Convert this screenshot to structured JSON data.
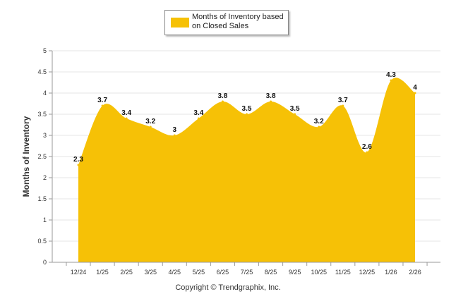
{
  "chart_data": {
    "type": "area",
    "x": [
      "12/24",
      "1/25",
      "2/25",
      "3/25",
      "4/25",
      "5/25",
      "6/25",
      "7/25",
      "8/25",
      "9/25",
      "10/25",
      "11/25",
      "12/25",
      "1/26",
      "2/26"
    ],
    "series": [
      {
        "name": "Months of Inventory based on Closed Sales",
        "values": [
          2.3,
          3.7,
          3.4,
          3.2,
          3.0,
          3.4,
          3.8,
          3.5,
          3.8,
          3.5,
          3.2,
          3.7,
          2.6,
          4.3,
          4.0
        ],
        "labels": [
          "2.3",
          "3.7",
          "3.4",
          "3.2",
          "3",
          "3.4",
          "3.8",
          "3.5",
          "3.8",
          "3.5",
          "3.2",
          "3.7",
          "2.6",
          "4.3",
          "4"
        ],
        "color": "#F6C106"
      }
    ],
    "yticks": [
      "0",
      "0.5",
      "1",
      "1.5",
      "2",
      "2.5",
      "3",
      "3.5",
      "4",
      "4.5",
      "5"
    ],
    "ylim": [
      0,
      5
    ],
    "ylabel": "Months of Inventory",
    "grid": true,
    "legend": "top-center"
  },
  "legend": {
    "text": "Months of Inventory based on Closed Sales",
    "color": "#F6C106"
  },
  "footer": {
    "copyright": "Copyright © Trendgraphix, Inc."
  }
}
